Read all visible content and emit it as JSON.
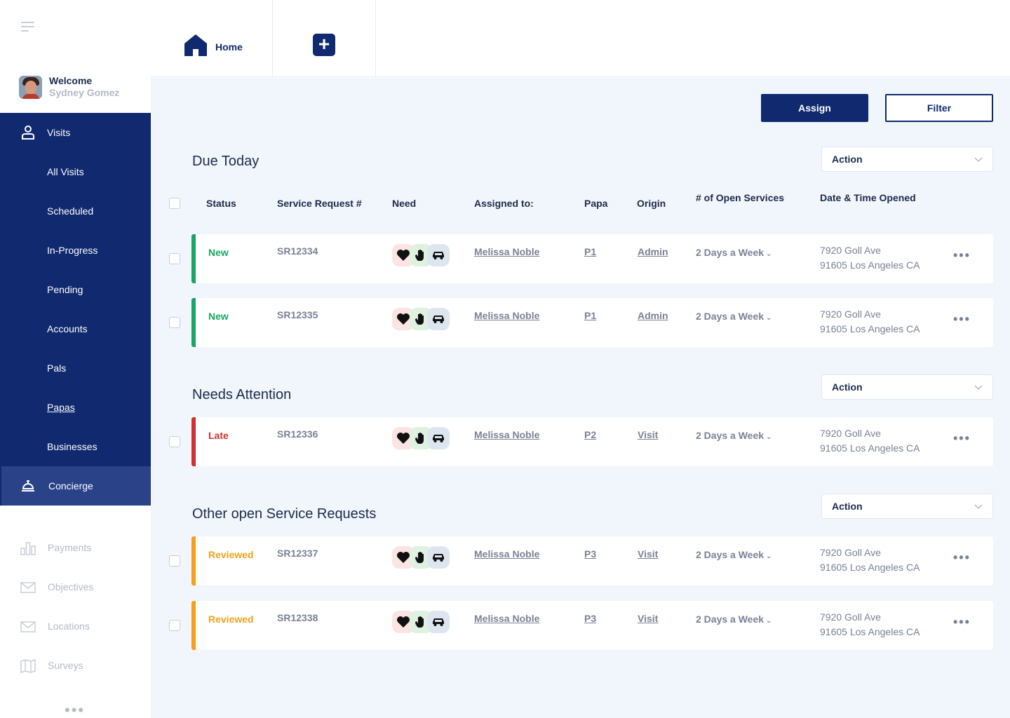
{
  "sidebar": {
    "welcome": "Welcome",
    "user_name": "Sydney Gomez",
    "items": [
      {
        "label": "Visits"
      },
      {
        "label": "All Visits"
      },
      {
        "label": "Scheduled"
      },
      {
        "label": "In-Progress"
      },
      {
        "label": "Pending"
      },
      {
        "label": "Accounts"
      },
      {
        "label": "Pals"
      },
      {
        "label": "Papas"
      },
      {
        "label": "Businesses"
      },
      {
        "label": "Concierge"
      }
    ],
    "muted_items": [
      {
        "label": "Payments"
      },
      {
        "label": "Objectives"
      },
      {
        "label": "Locations"
      },
      {
        "label": "Surveys"
      }
    ],
    "more": "•••"
  },
  "topbar": {
    "home_label": "Home",
    "add_label": "+"
  },
  "toolbar": {
    "assign_label": "Assign",
    "filter_label": "Filter"
  },
  "columns": {
    "status": "Status",
    "service_request": "Service Request #",
    "need": "Need",
    "assigned_to": "Assigned to:",
    "papa": "Papa",
    "origin": "Origin",
    "open_services": "# of Open Services",
    "date_opened": "Date & Time Opened"
  },
  "sections": [
    {
      "title": "Due Today",
      "action": "Action",
      "rows": [
        {
          "status": "New",
          "sr": "SR12334",
          "assigned": "Melissa Noble",
          "papa": "P1",
          "origin": "Admin",
          "freq": "2 Days a Week",
          "addr1": "7920 Goll Ave",
          "addr2": "91605 Los Angeles CA"
        },
        {
          "status": "New",
          "sr": "SR12335",
          "assigned": "Melissa Noble",
          "papa": "P1",
          "origin": "Admin",
          "freq": "2 Days a Week",
          "addr1": "7920 Goll Ave",
          "addr2": "91605 Los Angeles CA"
        }
      ]
    },
    {
      "title": "Needs Attention",
      "action": "Action",
      "rows": [
        {
          "status": "Late",
          "sr": "SR12336",
          "assigned": "Melissa Noble",
          "papa": "P2",
          "origin": "Visit",
          "freq": "2 Days a Week",
          "addr1": "7920 Goll Ave",
          "addr2": "91605 Los Angeles CA"
        }
      ]
    },
    {
      "title": "Other open Service Requests",
      "action": "Action",
      "rows": [
        {
          "status": "Reviewed",
          "sr": "SR12337",
          "assigned": "Melissa Noble",
          "papa": "P3",
          "origin": "Visit",
          "freq": "2 Days a Week",
          "addr1": "7920 Goll Ave",
          "addr2": "91605 Los Angeles CA"
        },
        {
          "status": "Reviewed",
          "sr": "SR12338",
          "assigned": "Melissa Noble",
          "papa": "P3",
          "origin": "Visit",
          "freq": "2 Days a Week",
          "addr1": "7920 Goll Ave",
          "addr2": "91605 Los Angeles CA"
        }
      ]
    }
  ],
  "row_more": "•••",
  "chevron": "⌄",
  "colors": {
    "primary": "#10296f",
    "new": "#1aa564",
    "late": "#d32f2f",
    "reviewed": "#f5a01a",
    "heart_bg": "#fde4e4",
    "hand_bg": "#dff1df",
    "car_bg": "#dde6f0"
  },
  "icons": {
    "visits": "person-icon",
    "concierge": "bell-icon",
    "payments": "chart-icon",
    "objectives": "mail-icon",
    "locations": "mail-icon",
    "surveys": "map-icon",
    "needs": [
      "heart-icon",
      "hand-icon",
      "car-icon"
    ]
  }
}
